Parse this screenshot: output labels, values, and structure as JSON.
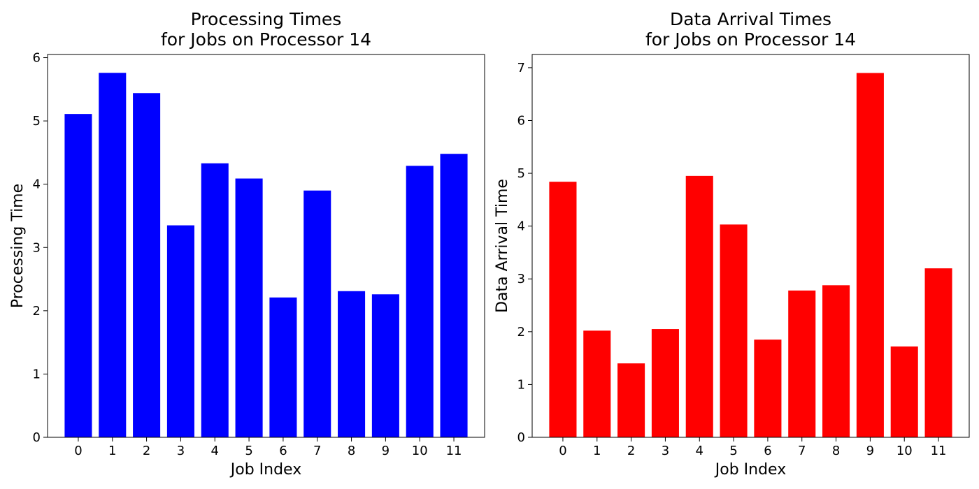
{
  "chart_data": [
    {
      "type": "bar",
      "title": "Processing Times\nfor Jobs on Processor 14",
      "title_lines": [
        "Processing Times",
        "for Jobs on Processor 14"
      ],
      "xlabel": "Job Index",
      "ylabel": "Processing Time",
      "categories": [
        "0",
        "1",
        "2",
        "3",
        "4",
        "5",
        "6",
        "7",
        "8",
        "9",
        "10",
        "11"
      ],
      "values": [
        5.11,
        5.76,
        5.44,
        3.35,
        4.33,
        4.09,
        2.21,
        3.9,
        2.31,
        2.26,
        4.29,
        4.48
      ],
      "yticks": [
        0,
        1,
        2,
        3,
        4,
        5,
        6
      ],
      "ylim": [
        0,
        6.05
      ],
      "color": "#0000ff",
      "grid": false,
      "legend": "none"
    },
    {
      "type": "bar",
      "title": "Data Arrival Times\nfor Jobs on Processor 14",
      "title_lines": [
        "Data Arrival Times",
        "for Jobs on Processor 14"
      ],
      "xlabel": "Job Index",
      "ylabel": "Data Arrival Time",
      "categories": [
        "0",
        "1",
        "2",
        "3",
        "4",
        "5",
        "6",
        "7",
        "8",
        "9",
        "10",
        "11"
      ],
      "values": [
        4.84,
        2.02,
        1.4,
        2.05,
        4.95,
        4.03,
        1.85,
        2.78,
        2.88,
        6.9,
        1.72,
        3.2
      ],
      "yticks": [
        0,
        1,
        2,
        3,
        4,
        5,
        6,
        7
      ],
      "ylim": [
        0,
        7.25
      ],
      "color": "#ff0000",
      "grid": false,
      "legend": "none"
    }
  ]
}
